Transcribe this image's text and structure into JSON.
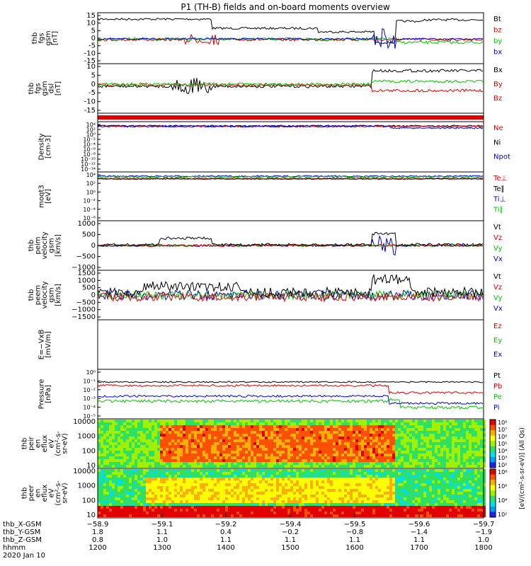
{
  "title": "P1 (TH-B) fields and on-board moments overview",
  "colors": {
    "black": "#000000",
    "red": "#e00000",
    "green": "#00c800",
    "blue": "#0000e0"
  },
  "panels": [
    {
      "id": "fgs",
      "ylabel": [
        "thb",
        "fgs",
        "gsm",
        "[nT]"
      ],
      "yticks": [
        "15",
        "10",
        "5",
        "0",
        "-5",
        "-10",
        "-15"
      ],
      "legend": [
        {
          "text": "Bt",
          "color": "black"
        },
        {
          "text": "bz",
          "color": "red"
        },
        {
          "text": "by",
          "color": "green"
        },
        {
          "text": "bx",
          "color": "blue"
        }
      ]
    },
    {
      "id": "fgs_dsl",
      "ylabel": [
        "thb",
        "fgs",
        "gsm",
        "dsl",
        "[nT]"
      ],
      "yticks": [
        "10",
        "5",
        "0",
        "-5",
        "-10",
        "-15"
      ],
      "legend": [
        {
          "text": "Bx",
          "color": "black"
        },
        {
          "text": "By",
          "color": "red"
        },
        {
          "text": "Bz",
          "color": "red"
        }
      ]
    },
    {
      "id": "density",
      "ylabel": [
        "Density",
        "[cm-3]"
      ],
      "yticks": [
        "10⁴",
        "10²",
        "10⁰",
        "10⁻²",
        "10⁻⁴",
        "10⁻⁶",
        "10⁻⁸",
        "10⁻¹⁰",
        "10⁻¹²",
        "10⁻¹⁴"
      ],
      "legend": [
        {
          "text": "Ne",
          "color": "red"
        },
        {
          "text": "Ni",
          "color": "black"
        },
        {
          "text": "Npot",
          "color": "blue"
        }
      ]
    },
    {
      "id": "temp",
      "ylabel": [
        "moqt3",
        "[eV]"
      ],
      "yticks": [
        "10⁴",
        "10²",
        "10⁰",
        "10⁻²",
        "10⁻⁴",
        "10⁻⁶"
      ],
      "legend": [
        {
          "text": "Te⊥",
          "color": "red"
        },
        {
          "text": "Te∥",
          "color": "black"
        },
        {
          "text": "Ti⊥",
          "color": "blue"
        },
        {
          "text": "Ti∥",
          "color": "green"
        }
      ]
    },
    {
      "id": "peim",
      "ylabel": [
        "thb",
        "peim",
        "velocity",
        "gsm",
        "[km/s]"
      ],
      "yticks": [
        "1000",
        "500",
        "0",
        "−500",
        "−1000"
      ],
      "legend": [
        {
          "text": "Vt",
          "color": "black"
        },
        {
          "text": "Vz",
          "color": "red"
        },
        {
          "text": "Vy",
          "color": "green"
        },
        {
          "text": "Vx",
          "color": "blue"
        }
      ]
    },
    {
      "id": "peem",
      "ylabel": [
        "thb",
        "peem",
        "velocity",
        "gsm",
        "[km/s]"
      ],
      "yticks": [
        "1500",
        "1000",
        "500",
        "0",
        "−500",
        "−1000",
        "−1500"
      ],
      "legend": [
        {
          "text": "Vt",
          "color": "black"
        },
        {
          "text": "Vz",
          "color": "red"
        },
        {
          "text": "Vy",
          "color": "green"
        },
        {
          "text": "Vx",
          "color": "blue"
        }
      ]
    },
    {
      "id": "efield",
      "ylabel": [
        "E=−VxB",
        "[mV/m]"
      ],
      "yticks": [],
      "legend": [
        {
          "text": "Ez",
          "color": "red"
        },
        {
          "text": "Ey",
          "color": "green"
        },
        {
          "text": "Ex",
          "color": "blue"
        }
      ]
    },
    {
      "id": "pressure",
      "ylabel": [
        "Pressure",
        "[nPa]"
      ],
      "yticks": [
        "10⁰",
        "10⁻¹",
        "10⁻²",
        "10⁻³",
        "10⁻⁴",
        "10⁻⁵"
      ],
      "legend": [
        {
          "text": "Pt",
          "color": "black"
        },
        {
          "text": "Pb",
          "color": "red"
        },
        {
          "text": "Pe",
          "color": "green"
        },
        {
          "text": "Pi",
          "color": "blue"
        }
      ]
    },
    {
      "id": "peir",
      "ylabel": [
        "thb",
        "peir",
        "en",
        "eflux",
        "eV",
        "(cm²-s-",
        "sr-eV)"
      ],
      "yticks": [
        "10000",
        "1000",
        "100",
        "10"
      ],
      "legend": []
    },
    {
      "id": "peer",
      "ylabel": [
        "thb",
        "peer",
        "en",
        "eflux",
        "eV",
        "(cm²-s-",
        "sr-eV)"
      ],
      "yticks": [
        "10000",
        "1000",
        "100",
        "10"
      ],
      "legend": []
    }
  ],
  "colorbar1": {
    "ticks": [
      "10⁸",
      "10⁷",
      "10⁶",
      "10⁵",
      "10⁴",
      "10³",
      "10²"
    ]
  },
  "colorbar2": {
    "ticks": [
      "10⁸",
      "10⁶",
      "10⁴",
      "10²"
    ]
  },
  "colorbar_label": "[eV/(cm²-s-sr-eV)] (All Qs)",
  "xaxis": {
    "rows": [
      {
        "label": "thb_X-GSM",
        "values": [
          "−58.9",
          "−59.1",
          "−59.2",
          "−59.4",
          "−59.5",
          "−59.6",
          "−59.7"
        ]
      },
      {
        "label": "thb_Y-GSM",
        "values": [
          "1.8",
          "1.1",
          "0.4",
          "−0.2",
          "−0.8",
          "−1.4",
          "−1.9"
        ]
      },
      {
        "label": "thb_Z-GSM",
        "values": [
          "0.8",
          "1.0",
          "1.1",
          "1.1",
          "1.1",
          "1.1",
          "1.0"
        ]
      },
      {
        "label": "hhmm",
        "values": [
          "1200",
          "1300",
          "1400",
          "1500",
          "1600",
          "1700",
          "1800"
        ]
      }
    ],
    "date": "2020 Jan 10"
  }
}
